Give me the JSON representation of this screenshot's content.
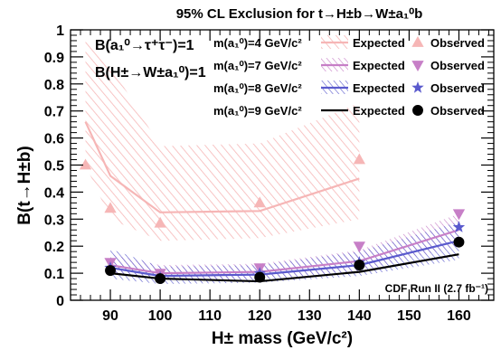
{
  "chart_data": {
    "type": "line",
    "title": "95% CL Exclusion for t→H±b→W±a₁⁰b",
    "xlabel": "H± mass (GeV/c²)",
    "ylabel": "B(t→H±b)",
    "xlim": [
      82,
      167
    ],
    "ylim": [
      0,
      1
    ],
    "x_ticks": [
      90,
      100,
      110,
      120,
      130,
      140,
      150,
      160
    ],
    "y_ticks": [
      0,
      0.1,
      0.2,
      0.3,
      0.4,
      0.5,
      0.6,
      0.7,
      0.8,
      0.9,
      1
    ],
    "assumptions": [
      "B(a₁⁰→τ⁺τ⁻)=1",
      "B(H±→W±a₁⁰)=1"
    ],
    "annotation": "CDF Run II (2.7 fb⁻¹)",
    "legend_position": "top-right",
    "series": [
      {
        "name": "m(a₁⁰)=4 GeV/c²",
        "color": "#f6b6b6",
        "marker": "triangle-up",
        "expected_label": "Expected",
        "observed_label": "Observed",
        "x": [
          85,
          90,
          100,
          120,
          140
        ],
        "expected": [
          0.66,
          0.46,
          0.325,
          0.33,
          0.45
        ],
        "band_upper": [
          0.98,
          0.87,
          0.57,
          0.58,
          0.73
        ],
        "band_lower": [
          0.5,
          0.3,
          0.22,
          0.23,
          0.3
        ],
        "observed": [
          0.5,
          0.34,
          0.285,
          0.36,
          0.52
        ]
      },
      {
        "name": "m(a₁⁰)=7 GeV/c²",
        "color": "#c77fc7",
        "marker": "triangle-down",
        "expected_label": "Expected",
        "observed_label": "Observed",
        "x": [
          90,
          100,
          120,
          140,
          160
        ],
        "expected": [
          0.13,
          0.1,
          0.105,
          0.145,
          0.26
        ],
        "band_upper": [
          0.17,
          0.13,
          0.135,
          0.185,
          0.32
        ],
        "band_lower": [
          0.1,
          0.075,
          0.08,
          0.11,
          0.2
        ],
        "observed": [
          0.14,
          0.1,
          0.12,
          0.2,
          0.32
        ]
      },
      {
        "name": "m(a₁⁰)=8 GeV/c²",
        "color": "#5a5acd",
        "marker": "star",
        "expected_label": "Expected",
        "observed_label": "Observed",
        "x": [
          90,
          100,
          120,
          140,
          160
        ],
        "expected": [
          0.12,
          0.09,
          0.095,
          0.13,
          0.22
        ],
        "band_upper": [
          0.19,
          0.125,
          0.13,
          0.18,
          0.29
        ],
        "band_lower": [
          0.08,
          0.06,
          0.065,
          0.09,
          0.15
        ],
        "observed": [
          0.12,
          0.085,
          0.1,
          0.14,
          0.27
        ]
      },
      {
        "name": "m(a₁⁰)=9 GeV/c²",
        "color": "#000000",
        "marker": "circle",
        "expected_label": "Expected",
        "observed_label": "Observed",
        "x": [
          90,
          100,
          120,
          140,
          160
        ],
        "expected": [
          0.1,
          0.08,
          0.07,
          0.105,
          0.17
        ],
        "observed": [
          0.11,
          0.08,
          0.085,
          0.13,
          0.215
        ]
      }
    ]
  }
}
